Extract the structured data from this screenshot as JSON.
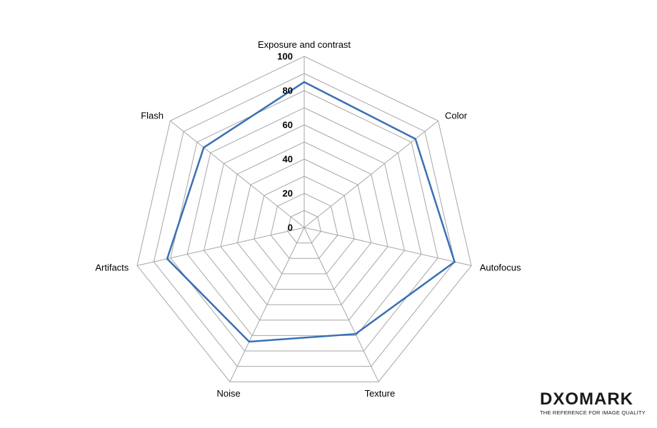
{
  "chart_data": {
    "type": "radar",
    "axes": [
      "Exposure and contrast",
      "Color",
      "Autofocus",
      "Texture",
      "Noise",
      "Artifacts",
      "Flash"
    ],
    "values": [
      85,
      83,
      90,
      69,
      74,
      82,
      75
    ],
    "rlim": [
      0,
      100
    ],
    "ticks": [
      0,
      20,
      40,
      60,
      80,
      100
    ],
    "tick_labels": [
      "0",
      "20",
      "40",
      "60",
      "80",
      "100"
    ],
    "grid_levels": [
      10,
      20,
      30,
      40,
      50,
      60,
      70,
      80,
      90,
      100
    ],
    "grid": true,
    "series_color": "#3a70b4",
    "grid_color": "#a6a6a6"
  },
  "logo": {
    "name": "DXOMARK",
    "tagline": "THE REFERENCE FOR IMAGE QUALITY"
  }
}
